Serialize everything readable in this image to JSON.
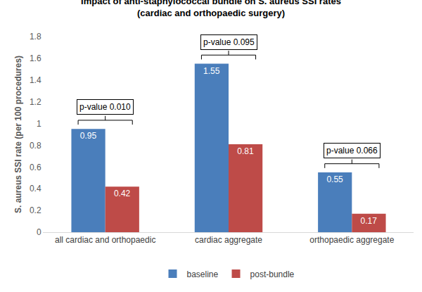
{
  "chart_data": {
    "type": "bar",
    "title": "Impact of anti-staphylococcal bundle on S. aureus SSI rates\n(cardiac and orthopaedic surgery)",
    "y_label": "S. aureus SSI rate (per 100 procedures)",
    "categories": [
      "all cardiac and orthopaedic",
      "cardiac aggregate",
      "orthopaedic aggregate"
    ],
    "series": [
      {
        "name": "baseline",
        "color": "#4a7ebb",
        "values": [
          0.95,
          1.55,
          0.55
        ]
      },
      {
        "name": "post-bundle",
        "color": "#be4b48",
        "values": [
          0.42,
          0.81,
          0.17
        ]
      }
    ],
    "ylim": [
      0,
      1.8
    ],
    "yticks": [
      0,
      0.2,
      0.4,
      0.6,
      0.8,
      1,
      1.2,
      1.4,
      1.6,
      1.8
    ],
    "grid": false,
    "legend": "bottom",
    "data_labels": true,
    "annotations": [
      {
        "text": "p-value 0.010",
        "category": "all cardiac and orthopaedic"
      },
      {
        "text": "p-value 0.095",
        "category": "cardiac aggregate"
      },
      {
        "text": "p-value 0.066",
        "category": "orthopaedic aggregate"
      }
    ]
  }
}
